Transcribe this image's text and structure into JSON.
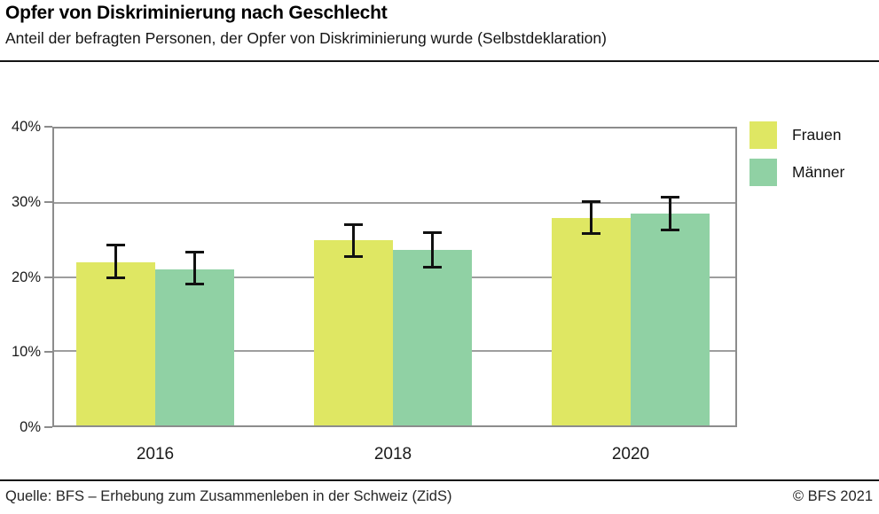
{
  "header": {
    "title": "Opfer von Diskriminierung nach Geschlecht",
    "subtitle": "Anteil der befragten Personen, der Opfer von Diskriminierung wurde (Selbstdeklaration)"
  },
  "chart_data": {
    "type": "bar",
    "title": "Opfer von Diskriminierung nach Geschlecht",
    "subtitle": "Anteil der befragten Personen, der Opfer von Diskriminierung wurde (Selbstdeklaration)",
    "categories": [
      "2016",
      "2018",
      "2020"
    ],
    "series": [
      {
        "name": "Frauen",
        "color": "#dfe763",
        "values": [
          22.0,
          25.0,
          28.0
        ],
        "err_low": [
          19.9,
          22.7,
          25.8
        ],
        "err_high": [
          24.3,
          27.1,
          30.2
        ]
      },
      {
        "name": "Männer",
        "color": "#90d1a4",
        "values": [
          21.0,
          23.7,
          28.5
        ],
        "err_low": [
          19.0,
          21.3,
          26.3
        ],
        "err_high": [
          23.4,
          26.0,
          30.8
        ]
      }
    ],
    "ylabel": "",
    "xlabel": "",
    "ylim": [
      0,
      40
    ],
    "yticks": [
      {
        "value": 40,
        "label": "40%"
      },
      {
        "value": 30,
        "label": "30%"
      },
      {
        "value": 20,
        "label": "20%"
      },
      {
        "value": 10,
        "label": "10%"
      },
      {
        "value": 0,
        "label": "0%"
      }
    ],
    "grid": "horizontal",
    "legend_position": "top-right",
    "error_bars": true
  },
  "colors": {
    "frauen": "#dfe763",
    "maenner": "#90d1a4",
    "gridline": "#9e9e9e",
    "axis_border": "#8c8c8c",
    "error_bar": "#111111",
    "rule": "#141414"
  },
  "footer": {
    "source": "Quelle: BFS – Erhebung zum Zusammenleben in der Schweiz (ZidS)",
    "copyright": "© BFS 2021"
  }
}
